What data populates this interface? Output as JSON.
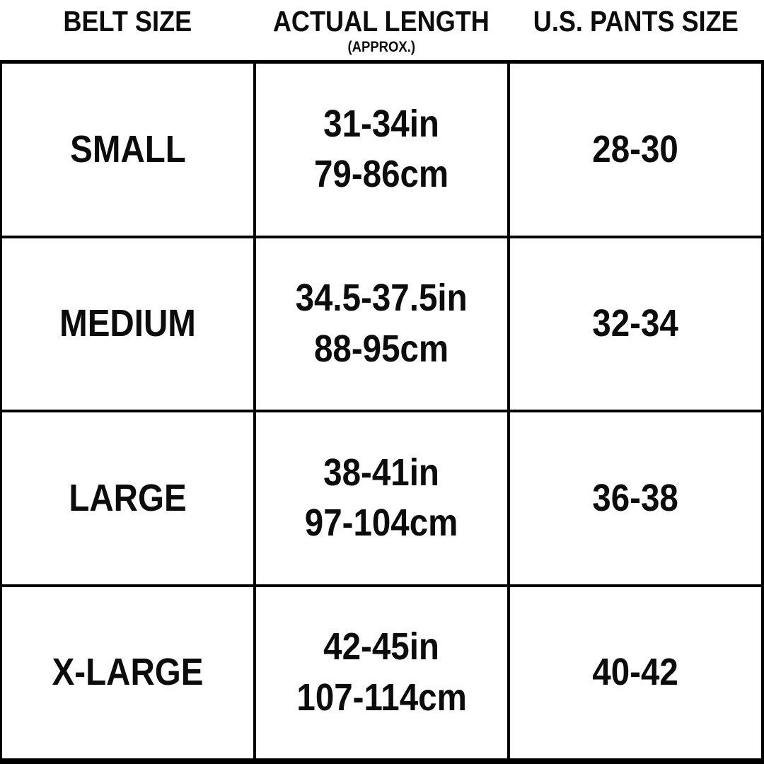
{
  "colors": {
    "background": "#ffffff",
    "text": "#0c0c0c",
    "border": "#000000"
  },
  "chart_data": {
    "type": "table",
    "columns": [
      {
        "label": "BELT SIZE",
        "sublabel": ""
      },
      {
        "label": "ACTUAL LENGTH",
        "sublabel": "(APPROX.)"
      },
      {
        "label": "U.S. PANTS SIZE",
        "sublabel": ""
      }
    ],
    "rows": [
      {
        "belt_size": "SMALL",
        "length_in": "31-34in",
        "length_cm": "79-86cm",
        "pants_size": "28-30"
      },
      {
        "belt_size": "MEDIUM",
        "length_in": "34.5-37.5in",
        "length_cm": "88-95cm",
        "pants_size": "32-34"
      },
      {
        "belt_size": "LARGE",
        "length_in": "38-41in",
        "length_cm": "97-104cm",
        "pants_size": "36-38"
      },
      {
        "belt_size": "X-LARGE",
        "length_in": "42-45in",
        "length_cm": "107-114cm",
        "pants_size": "40-42"
      }
    ]
  }
}
